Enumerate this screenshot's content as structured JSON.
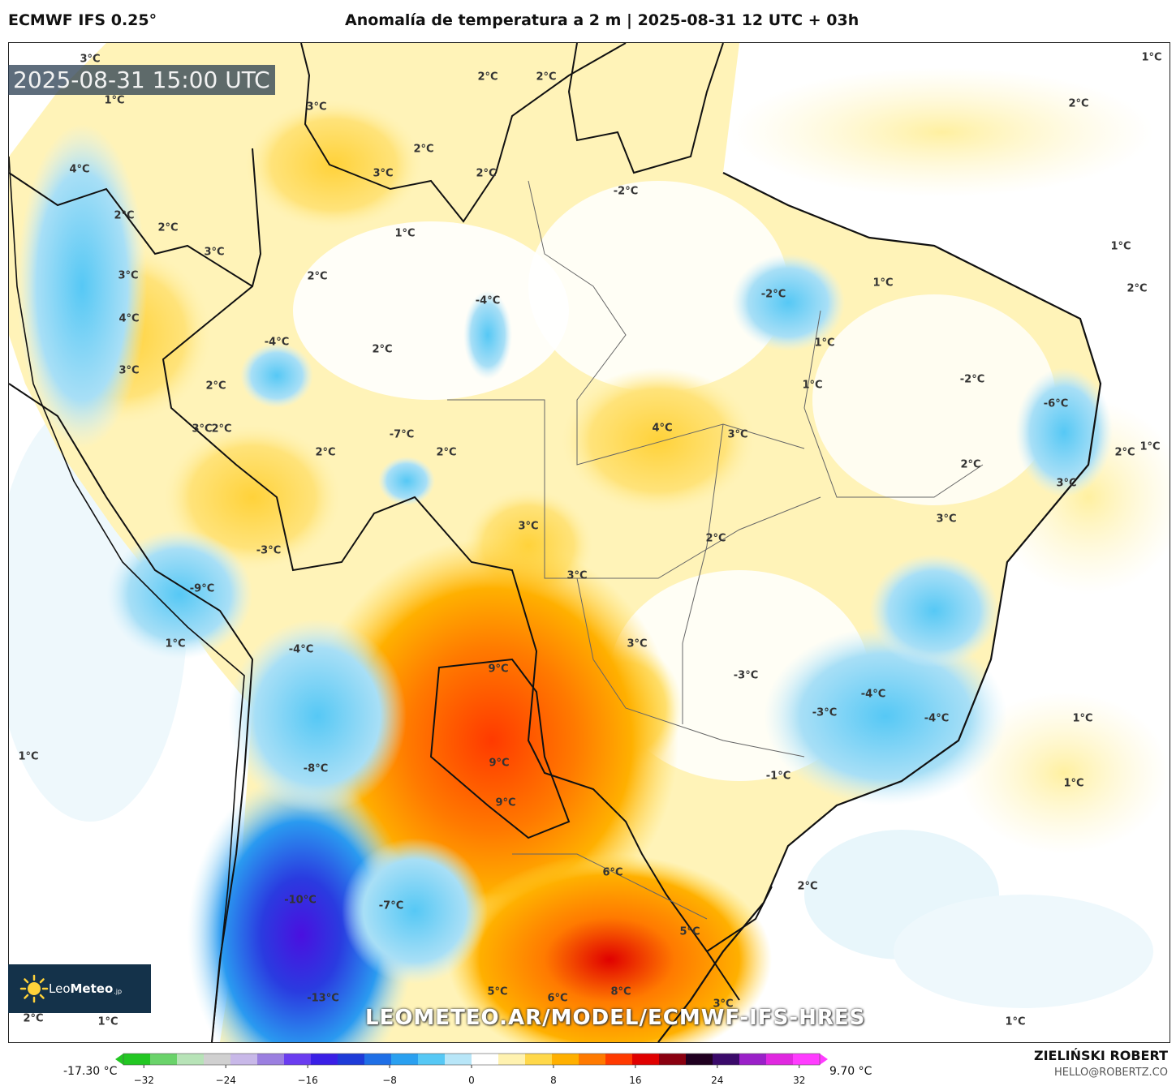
{
  "header": {
    "model": "ECMWF IFS 0.25°",
    "title": "Anomalía de temperatura a 2 m | 2025-08-31 12 UTC + 03h"
  },
  "timestamp": "2025-08-31 15:00 UTC",
  "logo": {
    "brand_plain": "Leo",
    "brand_bold": "Meteo",
    "suffix": ".jp"
  },
  "watermark": "LEOMETEO.AR/MODEL/ECMWF-IFS-HRES",
  "map_labels": [
    "3°C",
    "2°C",
    "2°C",
    "3°C",
    "2°C",
    "3°C",
    "1°C",
    "4°C",
    "2°C",
    "2°C",
    "3°C",
    "-2°C",
    "2°C",
    "2°C",
    "3°C",
    "1°C",
    "2°C",
    "-4°C",
    "4°C",
    "3°C",
    "2°C",
    "1°C",
    "2°C",
    "-2°C",
    "1°C",
    "1°C",
    "1°C",
    "-4°C",
    "2°C",
    "-2°C",
    "2°C",
    "1°C",
    "3°C",
    "-6°C",
    "-7°C",
    "4°C",
    "2°C",
    "3°C",
    "2°C",
    "3°C",
    "2°C",
    "1°C",
    "2°C",
    "3°C",
    "3°C",
    "2°C",
    "-3°C",
    "-9°C",
    "3°C",
    "3°C",
    "1°C",
    "-4°C",
    "9°C",
    "-3°C",
    "-4°C",
    "-3°C",
    "-4°C",
    "1°C",
    "1°C",
    "-8°C",
    "9°C",
    "-1°C",
    "1°C",
    "9°C",
    "6°C",
    "2°C",
    "-10°C",
    "-7°C",
    "5°C",
    "5°C",
    "6°C",
    "8°C",
    "3°C",
    "-13°C",
    "2°C",
    "1°C",
    "1°C"
  ],
  "colorbar": {
    "min_label": "-17.30 °C",
    "max_label": "9.70 °C",
    "ticks": [
      "−32",
      "−24",
      "−16",
      "−8",
      "0",
      "8",
      "16",
      "24",
      "32"
    ],
    "tick_values": [
      -32,
      -24,
      -16,
      -8,
      0,
      8,
      16,
      24,
      32
    ],
    "range": [
      -34,
      34
    ],
    "colors": [
      "#22c722",
      "#6ad36a",
      "#b7e3b7",
      "#d0d0d0",
      "#c8b8e8",
      "#9b7fe0",
      "#6a3cf0",
      "#3a1fe6",
      "#1e3bd8",
      "#1f6fe6",
      "#2aa0f0",
      "#56c8f5",
      "#b8e6f8",
      "#ffffff",
      "#fff2b0",
      "#ffd84a",
      "#ffb000",
      "#ff7a00",
      "#ff3a00",
      "#e00000",
      "#8a0010",
      "#200020",
      "#3a0a6a",
      "#9a20c8",
      "#e028e0",
      "#ff3cff"
    ]
  },
  "signature": {
    "name": "ZIELIŃSKI ROBERT",
    "email": "HELLO@ROBERTZ.CO"
  }
}
